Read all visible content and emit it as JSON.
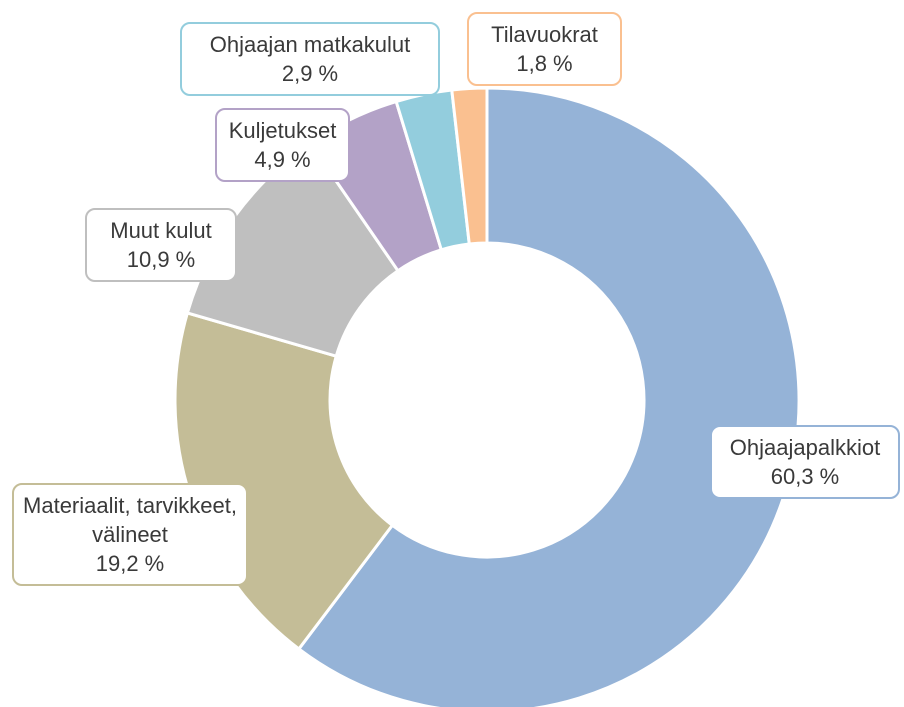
{
  "chart_data": {
    "type": "donut",
    "categories": [
      "Ohjaajapalkkiot",
      "Materiaalit, tarvikkeet, välineet",
      "Muut kulut",
      "Kuljetukset",
      "Ohjaajan matkakulut",
      "Tilavuokrat"
    ],
    "values": [
      60.3,
      19.2,
      10.9,
      4.9,
      2.9,
      1.8
    ],
    "value_labels": [
      "60,3 %",
      "19,2 %",
      "10,9 %",
      "4,9 %",
      "2,9 %",
      "1,8 %"
    ],
    "colors": [
      "#95b3d7",
      "#c4bd97",
      "#bfbfbf",
      "#b3a2c7",
      "#93cddd",
      "#fac090"
    ]
  }
}
